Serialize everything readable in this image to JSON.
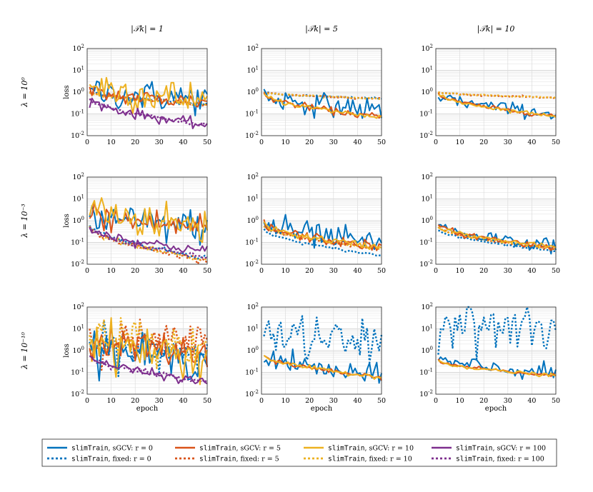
{
  "figure": {
    "column_titles": [
      "|𝒯k| = 1",
      "|𝒯k| = 5",
      "|𝒯k| = 10"
    ],
    "row_labels": [
      "λ = 10⁰",
      "λ = 10⁻³",
      "λ = 10⁻¹⁰"
    ],
    "ylabel": "loss",
    "xlabel": "epoch",
    "legend": [
      {
        "method": "slimTrain",
        "desc": ", sGCV: r = 0",
        "color": "#0072BD",
        "dash": false
      },
      {
        "method": "slimTrain",
        "desc": ", sGCV: r = 5",
        "color": "#D95319",
        "dash": false
      },
      {
        "method": "slimTrain",
        "desc": ", sGCV: r = 10",
        "color": "#EDB120",
        "dash": false
      },
      {
        "method": "slimTrain",
        "desc": ", sGCV: r = 100",
        "color": "#7E2F8E",
        "dash": false
      },
      {
        "method": "slimTrain",
        "desc": ", fixed: r = 0",
        "color": "#0072BD",
        "dash": true
      },
      {
        "method": "slimTrain",
        "desc": ", fixed: r = 5",
        "color": "#D95319",
        "dash": true
      },
      {
        "method": "slimTrain",
        "desc": ", fixed: r = 10",
        "color": "#EDB120",
        "dash": true
      },
      {
        "method": "slimTrain",
        "desc": ", fixed: r = 100",
        "color": "#7E2F8E",
        "dash": true
      }
    ]
  },
  "chart_data": {
    "type": "line",
    "xlim": [
      0,
      50
    ],
    "ylim": [
      0.01,
      100
    ],
    "yscale": "log",
    "xticks": [
      "0",
      "10",
      "20",
      "30",
      "40",
      "50"
    ],
    "yticks": [
      "10^-2",
      "10^-1",
      "10^0",
      "10^1",
      "10^2"
    ],
    "grid": true,
    "panels": [
      {
        "row": 0,
        "col": 0,
        "series": [
          {
            "name": "slimTrain, sGCV: r = 0",
            "trend": [
              1.2,
              0.5
            ],
            "noise": 0.35
          },
          {
            "name": "slimTrain, sGCV: r = 5",
            "trend": [
              1.1,
              0.35
            ],
            "noise": 0.2
          },
          {
            "name": "slimTrain, sGCV: r = 10",
            "trend": [
              3.0,
              0.4
            ],
            "noise": 0.45
          },
          {
            "name": "slimTrain, sGCV: r = 100",
            "trend": [
              0.5,
              0.03
            ],
            "noise": 0.12
          },
          {
            "name": "slimTrain, fixed: r = 0",
            "trend": [
              1.0,
              0.3
            ],
            "noise": 0.05
          },
          {
            "name": "slimTrain, fixed: r = 5",
            "trend": [
              1.0,
              0.28
            ],
            "noise": 0.04
          },
          {
            "name": "slimTrain, fixed: r = 10",
            "trend": [
              1.0,
              0.25
            ],
            "noise": 0.04
          },
          {
            "name": "slimTrain, fixed: r = 100",
            "trend": [
              0.5,
              0.03
            ],
            "noise": 0.05
          }
        ]
      },
      {
        "row": 0,
        "col": 1,
        "series": [
          {
            "name": "slimTrain, sGCV: r = 0",
            "trend": [
              0.8,
              0.15
            ],
            "noise": 0.25
          },
          {
            "name": "slimTrain, sGCV: r = 5",
            "trend": [
              0.8,
              0.07
            ],
            "noise": 0.08
          },
          {
            "name": "slimTrain, sGCV: r = 10",
            "trend": [
              0.8,
              0.07
            ],
            "noise": 0.06
          },
          {
            "name": "slimTrain, fixed: r = 0",
            "trend": [
              1.0,
              0.5
            ],
            "noise": 0.02
          },
          {
            "name": "slimTrain, fixed: r = 5",
            "trend": [
              1.0,
              0.5
            ],
            "noise": 0.02
          },
          {
            "name": "slimTrain, fixed: r = 10",
            "trend": [
              1.0,
              0.5
            ],
            "noise": 0.02
          }
        ]
      },
      {
        "row": 0,
        "col": 2,
        "series": [
          {
            "name": "slimTrain, sGCV: r = 0",
            "trend": [
              0.8,
              0.1
            ],
            "noise": 0.15
          },
          {
            "name": "slimTrain, sGCV: r = 5",
            "trend": [
              0.8,
              0.08
            ],
            "noise": 0.05
          },
          {
            "name": "slimTrain, sGCV: r = 10",
            "trend": [
              0.8,
              0.08
            ],
            "noise": 0.04
          },
          {
            "name": "slimTrain, fixed: r = 5",
            "trend": [
              1.0,
              0.55
            ],
            "noise": 0.02
          },
          {
            "name": "slimTrain, fixed: r = 10",
            "trend": [
              1.0,
              0.55
            ],
            "noise": 0.02
          }
        ]
      },
      {
        "row": 1,
        "col": 0,
        "series": [
          {
            "name": "slimTrain, sGCV: r = 0",
            "trend": [
              1.5,
              0.5
            ],
            "noise": 0.4
          },
          {
            "name": "slimTrain, sGCV: r = 5",
            "trend": [
              2.0,
              0.5
            ],
            "noise": 0.35
          },
          {
            "name": "slimTrain, sGCV: r = 10",
            "trend": [
              5.0,
              0.5
            ],
            "noise": 0.45
          },
          {
            "name": "slimTrain, sGCV: r = 100",
            "trend": [
              0.5,
              0.04
            ],
            "noise": 0.12
          },
          {
            "name": "slimTrain, fixed: r = 0",
            "trend": [
              0.6,
              0.02
            ],
            "noise": 0.06
          },
          {
            "name": "slimTrain, fixed: r = 5",
            "trend": [
              0.5,
              0.015
            ],
            "noise": 0.06
          },
          {
            "name": "slimTrain, fixed: r = 10",
            "trend": [
              0.5,
              0.015
            ],
            "noise": 0.06
          },
          {
            "name": "slimTrain, fixed: r = 100",
            "trend": [
              0.5,
              0.02
            ],
            "noise": 0.05
          }
        ]
      },
      {
        "row": 1,
        "col": 1,
        "series": [
          {
            "name": "slimTrain, sGCV: r = 0",
            "trend": [
              0.9,
              0.08
            ],
            "noise": 0.3
          },
          {
            "name": "slimTrain, sGCV: r = 5",
            "trend": [
              0.7,
              0.06
            ],
            "noise": 0.12
          },
          {
            "name": "slimTrain, sGCV: r = 10",
            "trend": [
              0.7,
              0.06
            ],
            "noise": 0.08
          },
          {
            "name": "slimTrain, fixed: r = 0",
            "trend": [
              0.4,
              0.025
            ],
            "noise": 0.03
          },
          {
            "name": "slimTrain, fixed: r = 5",
            "trend": [
              0.6,
              0.05
            ],
            "noise": 0.03
          },
          {
            "name": "slimTrain, fixed: r = 10",
            "trend": [
              0.6,
              0.05
            ],
            "noise": 0.03
          }
        ]
      },
      {
        "row": 1,
        "col": 2,
        "series": [
          {
            "name": "slimTrain, sGCV: r = 0",
            "trend": [
              0.7,
              0.07
            ],
            "noise": 0.15
          },
          {
            "name": "slimTrain, sGCV: r = 5",
            "trend": [
              0.6,
              0.06
            ],
            "noise": 0.08
          },
          {
            "name": "slimTrain, sGCV: r = 10",
            "trend": [
              0.6,
              0.06
            ],
            "noise": 0.05
          },
          {
            "name": "slimTrain, fixed: r = 0",
            "trend": [
              0.4,
              0.04
            ],
            "noise": 0.03
          },
          {
            "name": "slimTrain, fixed: r = 5",
            "trend": [
              0.5,
              0.05
            ],
            "noise": 0.03
          },
          {
            "name": "slimTrain, fixed: r = 10",
            "trend": [
              0.5,
              0.05
            ],
            "noise": 0.03
          }
        ]
      },
      {
        "row": 2,
        "col": 0,
        "series": [
          {
            "name": "slimTrain, sGCV: r = 0",
            "trend": [
              2.0,
              0.3
            ],
            "noise": 0.4
          },
          {
            "name": "slimTrain, sGCV: r = 5",
            "trend": [
              3.0,
              0.8
            ],
            "noise": 0.4
          },
          {
            "name": "slimTrain, sGCV: r = 10",
            "trend": [
              5.0,
              0.4
            ],
            "noise": 0.5
          },
          {
            "name": "slimTrain, sGCV: r = 100",
            "trend": [
              0.6,
              0.035
            ],
            "noise": 0.1
          },
          {
            "name": "slimTrain, fixed: r = 0",
            "trend": [
              2.0,
              1.0
            ],
            "noise": 0.45
          },
          {
            "name": "slimTrain, fixed: r = 5",
            "trend": [
              4.0,
              2.0
            ],
            "noise": 0.45
          },
          {
            "name": "slimTrain, fixed: r = 10",
            "trend": [
              10.0,
              1.5
            ],
            "noise": 0.55
          },
          {
            "name": "slimTrain, fixed: r = 100",
            "trend": [
              0.6,
              0.04
            ],
            "noise": 0.08
          }
        ]
      },
      {
        "row": 2,
        "col": 1,
        "series": [
          {
            "name": "slimTrain, sGCV: r = 0",
            "trend": [
              0.7,
              0.06
            ],
            "noise": 0.25
          },
          {
            "name": "slimTrain, sGCV: r = 5",
            "trend": [
              0.6,
              0.06
            ],
            "noise": 0.06
          },
          {
            "name": "slimTrain, sGCV: r = 10",
            "trend": [
              0.6,
              0.06
            ],
            "noise": 0.05
          },
          {
            "name": "slimTrain, fixed: r = 0",
            "trend": [
              8.0,
              2.0
            ],
            "noise": 0.5
          }
        ]
      },
      {
        "row": 2,
        "col": 2,
        "series": [
          {
            "name": "slimTrain, sGCV: r = 0",
            "trend": [
              0.4,
              0.09
            ],
            "noise": 0.18
          },
          {
            "name": "slimTrain, sGCV: r = 5",
            "trend": [
              0.35,
              0.07
            ],
            "noise": 0.04
          },
          {
            "name": "slimTrain, sGCV: r = 10",
            "trend": [
              0.35,
              0.07
            ],
            "noise": 0.04
          },
          {
            "name": "slimTrain, fixed: r = 0",
            "trend": [
              25.0,
              8.0
            ],
            "noise": 0.6
          }
        ]
      }
    ]
  }
}
